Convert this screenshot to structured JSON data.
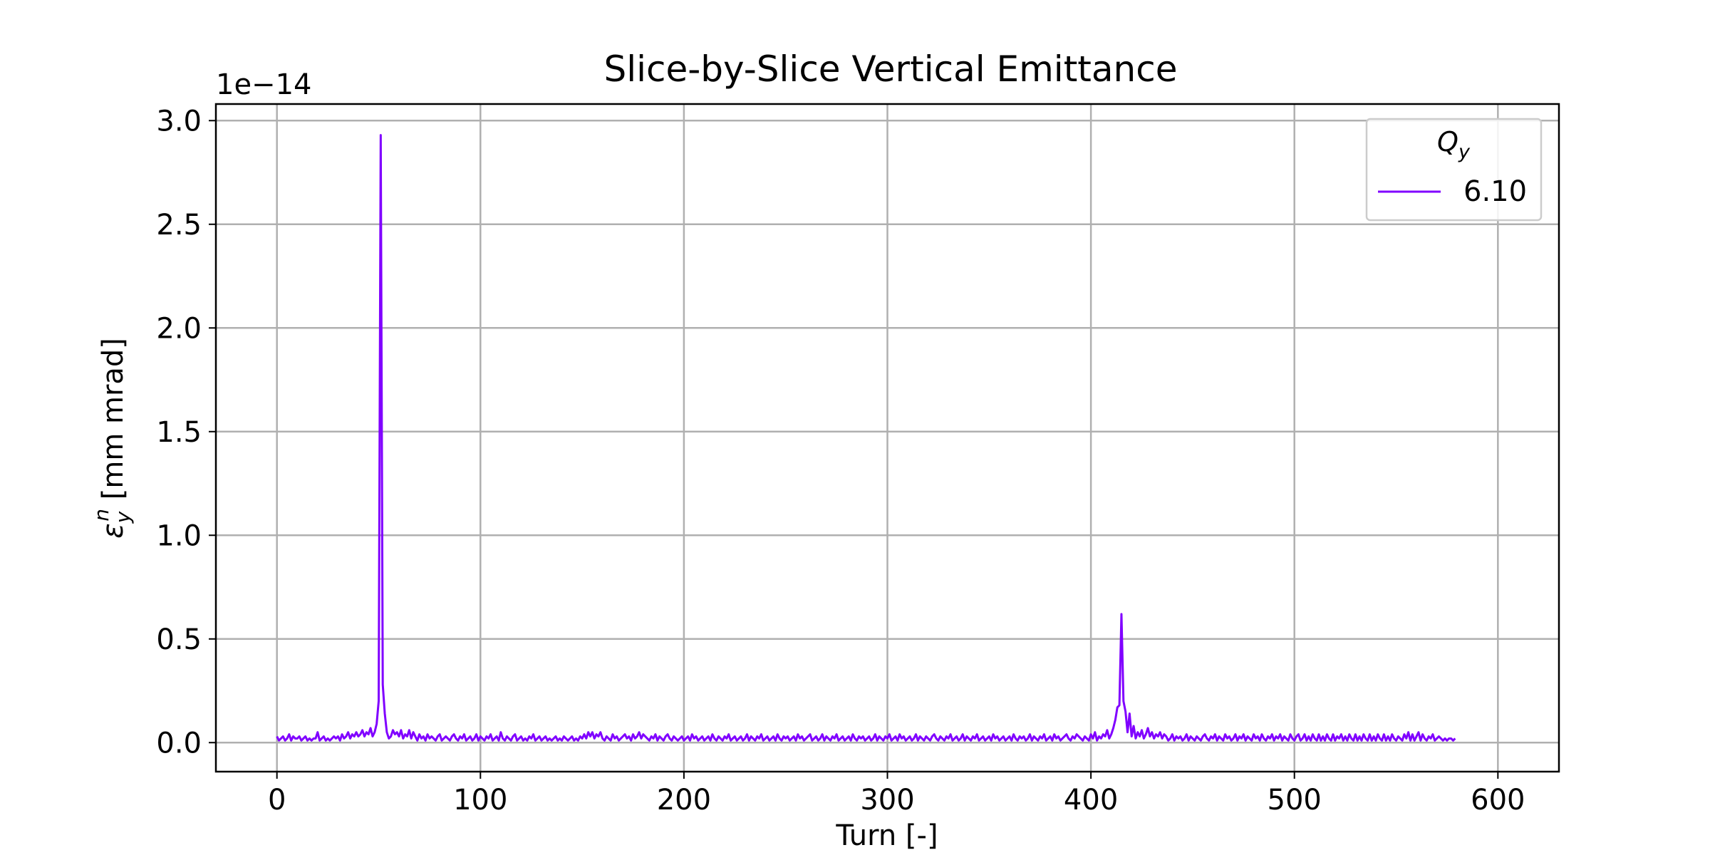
{
  "chart_data": {
    "type": "line",
    "title": "Slice-by-Slice Vertical Emittance",
    "xlabel": "Turn [-]",
    "ylabel_main": "ε",
    "ylabel_sub": "y",
    "ylabel_sup": "n",
    "ylabel_rest": " [mm mrad]",
    "offset_text": "1e−14",
    "xlim": [
      -30,
      630
    ],
    "ylim": [
      -0.14,
      3.08
    ],
    "xticks": [
      0,
      100,
      200,
      300,
      400,
      500,
      600
    ],
    "xtick_labels": [
      "0",
      "100",
      "200",
      "300",
      "400",
      "500",
      "600"
    ],
    "yticks": [
      0.0,
      0.5,
      1.0,
      1.5,
      2.0,
      2.5,
      3.0
    ],
    "ytick_labels": [
      "0.0",
      "0.5",
      "1.0",
      "1.5",
      "2.0",
      "2.5",
      "3.0"
    ],
    "grid": true,
    "legend": {
      "title_main": "Q",
      "title_sub": "y",
      "placement": "upper right"
    },
    "series": [
      {
        "name": "6.10",
        "color": "#8000ff",
        "x_start": 0,
        "x_step": 1,
        "values": [
          0.03,
          0.01,
          0.02,
          0.03,
          0.01,
          0.02,
          0.04,
          0.01,
          0.03,
          0.02,
          0.02,
          0.03,
          0.01,
          0.02,
          0.03,
          0.01,
          0.02,
          0.01,
          0.02,
          0.02,
          0.05,
          0.01,
          0.02,
          0.03,
          0.01,
          0.02,
          0.01,
          0.02,
          0.03,
          0.02,
          0.03,
          0.01,
          0.04,
          0.02,
          0.03,
          0.05,
          0.02,
          0.04,
          0.03,
          0.05,
          0.03,
          0.04,
          0.06,
          0.03,
          0.05,
          0.04,
          0.07,
          0.03,
          0.05,
          0.09,
          0.2,
          2.93,
          0.28,
          0.14,
          0.05,
          0.02,
          0.03,
          0.06,
          0.04,
          0.05,
          0.03,
          0.06,
          0.02,
          0.04,
          0.03,
          0.06,
          0.02,
          0.05,
          0.03,
          0.01,
          0.04,
          0.02,
          0.03,
          0.01,
          0.04,
          0.02,
          0.03,
          0.02,
          0.01,
          0.03,
          0.04,
          0.01,
          0.02,
          0.03,
          0.02,
          0.01,
          0.03,
          0.04,
          0.02,
          0.01,
          0.03,
          0.02,
          0.04,
          0.01,
          0.02,
          0.03,
          0.01,
          0.02,
          0.04,
          0.01,
          0.03,
          0.02,
          0.01,
          0.03,
          0.02,
          0.04,
          0.01,
          0.02,
          0.03,
          0.01,
          0.05,
          0.02,
          0.01,
          0.03,
          0.02,
          0.01,
          0.03,
          0.04,
          0.01,
          0.02,
          0.03,
          0.01,
          0.02,
          0.01,
          0.03,
          0.02,
          0.04,
          0.01,
          0.02,
          0.03,
          0.01,
          0.02,
          0.03,
          0.01,
          0.02,
          0.01,
          0.02,
          0.03,
          0.01,
          0.02,
          0.01,
          0.03,
          0.02,
          0.01,
          0.02,
          0.03,
          0.01,
          0.02,
          0.01,
          0.03,
          0.02,
          0.04,
          0.02,
          0.05,
          0.03,
          0.05,
          0.02,
          0.04,
          0.03,
          0.05,
          0.02,
          0.01,
          0.03,
          0.02,
          0.01,
          0.04,
          0.02,
          0.03,
          0.01,
          0.02,
          0.03,
          0.04,
          0.02,
          0.03,
          0.01,
          0.04,
          0.02,
          0.03,
          0.05,
          0.02,
          0.04,
          0.03,
          0.02,
          0.01,
          0.03,
          0.02,
          0.04,
          0.01,
          0.03,
          0.02,
          0.01,
          0.03,
          0.04,
          0.02,
          0.01,
          0.03,
          0.02,
          0.01,
          0.02,
          0.03,
          0.01,
          0.02,
          0.03,
          0.01,
          0.04,
          0.02,
          0.03,
          0.01,
          0.02,
          0.03,
          0.01,
          0.02,
          0.03,
          0.01,
          0.04,
          0.02,
          0.01,
          0.03,
          0.02,
          0.01,
          0.03,
          0.02,
          0.04,
          0.01,
          0.02,
          0.03,
          0.01,
          0.02,
          0.03,
          0.01,
          0.02,
          0.04,
          0.01,
          0.03,
          0.02,
          0.01,
          0.03,
          0.02,
          0.04,
          0.01,
          0.02,
          0.03,
          0.01,
          0.02,
          0.03,
          0.01,
          0.04,
          0.02,
          0.01,
          0.03,
          0.02,
          0.03,
          0.01,
          0.02,
          0.03,
          0.01,
          0.04,
          0.02,
          0.03,
          0.01,
          0.02,
          0.03,
          0.04,
          0.01,
          0.02,
          0.03,
          0.01,
          0.02,
          0.04,
          0.01,
          0.03,
          0.02,
          0.01,
          0.03,
          0.02,
          0.04,
          0.01,
          0.02,
          0.03,
          0.01,
          0.02,
          0.03,
          0.01,
          0.04,
          0.02,
          0.01,
          0.03,
          0.02,
          0.03,
          0.01,
          0.02,
          0.03,
          0.01,
          0.02,
          0.04,
          0.01,
          0.03,
          0.02,
          0.01,
          0.03,
          0.02,
          0.04,
          0.01,
          0.02,
          0.03,
          0.01,
          0.04,
          0.02,
          0.03,
          0.01,
          0.02,
          0.03,
          0.01,
          0.02,
          0.04,
          0.01,
          0.03,
          0.02,
          0.01,
          0.03,
          0.02,
          0.01,
          0.03,
          0.04,
          0.02,
          0.01,
          0.03,
          0.02,
          0.01,
          0.03,
          0.02,
          0.04,
          0.01,
          0.02,
          0.03,
          0.01,
          0.02,
          0.04,
          0.01,
          0.03,
          0.02,
          0.01,
          0.03,
          0.02,
          0.04,
          0.01,
          0.02,
          0.03,
          0.01,
          0.02,
          0.03,
          0.01,
          0.04,
          0.02,
          0.03,
          0.01,
          0.02,
          0.03,
          0.01,
          0.02,
          0.03,
          0.01,
          0.04,
          0.02,
          0.01,
          0.03,
          0.02,
          0.03,
          0.01,
          0.02,
          0.04,
          0.01,
          0.03,
          0.02,
          0.01,
          0.03,
          0.02,
          0.04,
          0.01,
          0.02,
          0.03,
          0.01,
          0.04,
          0.02,
          0.03,
          0.01,
          0.02,
          0.03,
          0.04,
          0.02,
          0.01,
          0.03,
          0.02,
          0.04,
          0.03,
          0.02,
          0.01,
          0.03,
          0.02,
          0.01,
          0.04,
          0.02,
          0.05,
          0.01,
          0.03,
          0.02,
          0.04,
          0.03,
          0.06,
          0.02,
          0.04,
          0.07,
          0.11,
          0.17,
          0.18,
          0.62,
          0.2,
          0.15,
          0.05,
          0.14,
          0.03,
          0.08,
          0.02,
          0.05,
          0.03,
          0.06,
          0.02,
          0.04,
          0.07,
          0.03,
          0.05,
          0.02,
          0.04,
          0.03,
          0.05,
          0.02,
          0.04,
          0.03,
          0.01,
          0.02,
          0.04,
          0.01,
          0.03,
          0.02,
          0.03,
          0.01,
          0.02,
          0.04,
          0.01,
          0.03,
          0.02,
          0.01,
          0.03,
          0.02,
          0.01,
          0.03,
          0.04,
          0.02,
          0.01,
          0.03,
          0.02,
          0.04,
          0.01,
          0.03,
          0.02,
          0.01,
          0.04,
          0.02,
          0.03,
          0.01,
          0.02,
          0.04,
          0.01,
          0.03,
          0.02,
          0.04,
          0.01,
          0.03,
          0.02,
          0.01,
          0.04,
          0.02,
          0.03,
          0.01,
          0.04,
          0.02,
          0.01,
          0.03,
          0.02,
          0.04,
          0.01,
          0.03,
          0.02,
          0.04,
          0.01,
          0.03,
          0.02,
          0.01,
          0.04,
          0.02,
          0.01,
          0.03,
          0.04,
          0.01,
          0.02,
          0.04,
          0.01,
          0.03,
          0.01,
          0.04,
          0.02,
          0.01,
          0.04,
          0.01,
          0.03,
          0.01,
          0.04,
          0.02,
          0.01,
          0.04,
          0.01,
          0.03,
          0.02,
          0.04,
          0.01,
          0.03,
          0.01,
          0.04,
          0.02,
          0.01,
          0.04,
          0.01,
          0.03,
          0.01,
          0.04,
          0.02,
          0.01,
          0.04,
          0.01,
          0.03,
          0.01,
          0.04,
          0.02,
          0.01,
          0.04,
          0.01,
          0.03,
          0.01,
          0.04,
          0.02,
          0.01,
          0.03,
          0.02,
          0.01,
          0.04,
          0.02,
          0.05,
          0.01,
          0.04,
          0.01,
          0.03,
          0.05,
          0.01,
          0.04,
          0.02,
          0.01,
          0.03,
          0.02,
          0.04,
          0.01,
          0.02,
          0.03,
          0.02,
          0.01,
          0.02,
          0.01,
          0.02,
          0.02,
          0.01,
          0.02
        ]
      }
    ]
  }
}
